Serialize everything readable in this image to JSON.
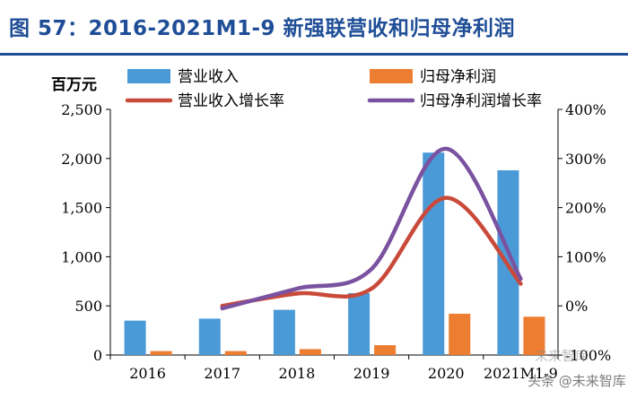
{
  "title": "图 57：2016-2021M1-9 新强联营收和归母净利润",
  "unit_label": "百万元",
  "watermark": "头条 @未来智库",
  "platform_mark": "未来智库",
  "colors": {
    "title": "#1f4e97",
    "revenue_bar": "#4a9ad8",
    "profit_bar": "#ed7d31",
    "revenue_growth_line": "#c94a3a",
    "profit_growth_line": "#7a52a0",
    "axis": "#000000"
  },
  "chart_data": {
    "type": "bar",
    "categories": [
      "2016",
      "2017",
      "2018",
      "2019",
      "2020",
      "2021M1-9"
    ],
    "series": [
      {
        "name": "营业收入",
        "type": "bar",
        "axis": "left",
        "values": [
          350,
          370,
          460,
          630,
          2060,
          1880
        ]
      },
      {
        "name": "归母净利润",
        "type": "bar",
        "axis": "left",
        "values": [
          40,
          40,
          60,
          100,
          420,
          390
        ]
      },
      {
        "name": "营业收入增长率",
        "type": "line",
        "axis": "right",
        "values": [
          null,
          0,
          25,
          35,
          220,
          45
        ]
      },
      {
        "name": "归母净利润增长率",
        "type": "line",
        "axis": "right",
        "values": [
          null,
          -5,
          35,
          75,
          320,
          55
        ]
      }
    ],
    "left_axis": {
      "label": "百万元",
      "ylim": [
        0,
        2500
      ],
      "ticks": [
        0,
        500,
        1000,
        1500,
        2000,
        2500
      ],
      "tick_labels": [
        "0",
        "500",
        "1,000",
        "1,500",
        "2,000",
        "2,500"
      ]
    },
    "right_axis": {
      "ylim": [
        -100,
        400
      ],
      "ticks": [
        -100,
        0,
        100,
        200,
        300,
        400
      ],
      "tick_labels": [
        "-100%",
        "0%",
        "100%",
        "200%",
        "300%",
        "400%"
      ]
    },
    "legend": [
      "营业收入",
      "归母净利润",
      "营业收入增长率",
      "归母净利润增长率"
    ],
    "legend_position": "top",
    "grid": false
  }
}
